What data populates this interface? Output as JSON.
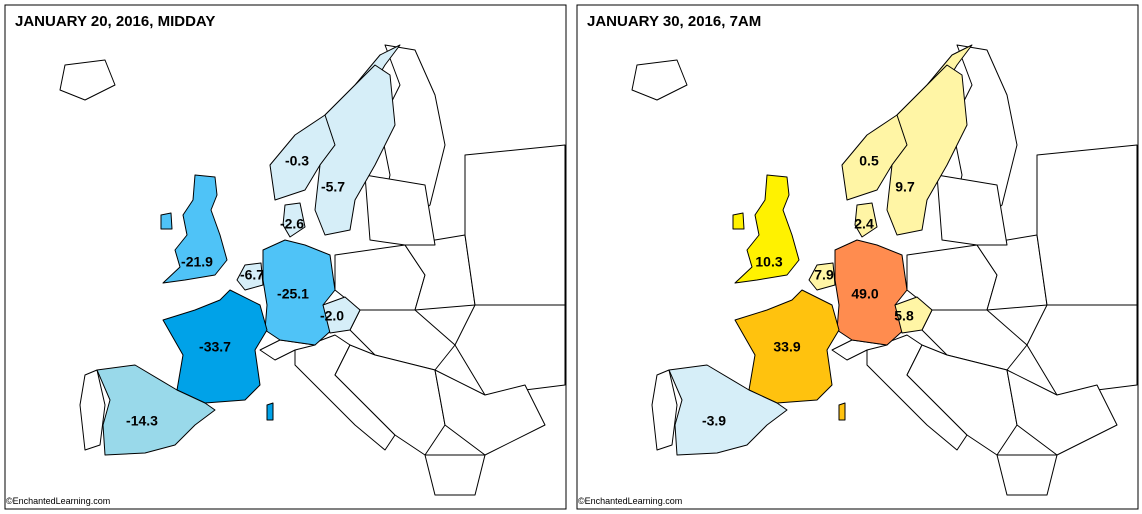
{
  "panels": [
    {
      "title": "JANUARY 20, 2016, MIDDAY",
      "credit": "©EnchantedLearning.com",
      "regions": [
        {
          "label": "-0.3",
          "color": "#d6eef8"
        },
        {
          "label": "-5.7",
          "color": "#d6eef8"
        },
        {
          "label": "-2.6",
          "color": "#d6eef8"
        },
        {
          "label": "-21.9",
          "color": "#4fc3f7"
        },
        {
          "label": "-6.7",
          "color": "#d6eef8"
        },
        {
          "label": "-25.1",
          "color": "#4fc3f7"
        },
        {
          "label": "-2.0",
          "color": "#d6eef8"
        },
        {
          "label": "-33.7",
          "color": "#00a2e8"
        },
        {
          "label": "-14.3",
          "color": "#99d9ea"
        }
      ]
    },
    {
      "title": "JANUARY 30, 2016, 7AM",
      "credit": "©EnchantedLearning.com",
      "regions": [
        {
          "label": "0.5",
          "color": "#fff5a5"
        },
        {
          "label": "9.7",
          "color": "#fff5a5"
        },
        {
          "label": "2.4",
          "color": "#fff5a5"
        },
        {
          "label": "10.3",
          "color": "#fff200"
        },
        {
          "label": "7.9",
          "color": "#fff5a5"
        },
        {
          "label": "49.0",
          "color": "#ff8c4f"
        },
        {
          "label": "5.8",
          "color": "#fff5a5"
        },
        {
          "label": "33.9",
          "color": "#ffc20e"
        },
        {
          "label": "-3.9",
          "color": "#d6eef8"
        }
      ]
    }
  ]
}
